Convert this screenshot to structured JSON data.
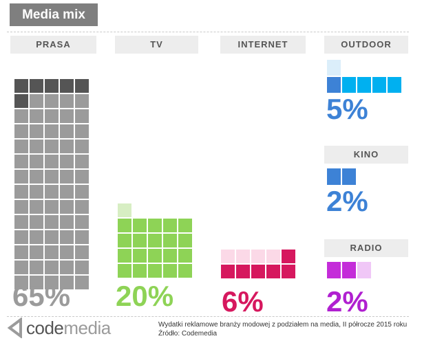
{
  "title": "Media mix",
  "logo_text_a": "code",
  "logo_text_b": "media",
  "footnote_line1": "Wydatki reklamowe branży modowej z podziałem na media, II półrocze 2015 roku",
  "footnote_line2": "Źródło: Codemedia",
  "colors": {
    "title_bg": "#7f7f7f",
    "label_bg": "#ededed",
    "prasa": "#9b9b9b",
    "prasa_dark": "#555555",
    "tv": "#8ed356",
    "tv_light": "#d7eec3",
    "internet": "#d6185e",
    "internet_light": "#fbd9e7",
    "outdoor": "#00b0f0",
    "outdoor_light": "#dbeefa",
    "outdoor_pct": "#3d82d6",
    "kino": "#3d82d6",
    "kino_pct": "#3d82d6",
    "radio": "#c42cd9",
    "radio_light": "#f0c7f7",
    "radio_pct": "#b020d0"
  },
  "chart_data": {
    "type": "waffle",
    "title": "Media mix",
    "categories": [
      "PRASA",
      "TV",
      "INTERNET",
      "OUTDOOR",
      "KINO",
      "RADIO"
    ],
    "values": [
      65,
      20,
      6,
      5,
      2,
      2
    ],
    "unit": "%",
    "labels": [
      "65%",
      "20%",
      "6%",
      "5%",
      "2%",
      "2%"
    ]
  }
}
